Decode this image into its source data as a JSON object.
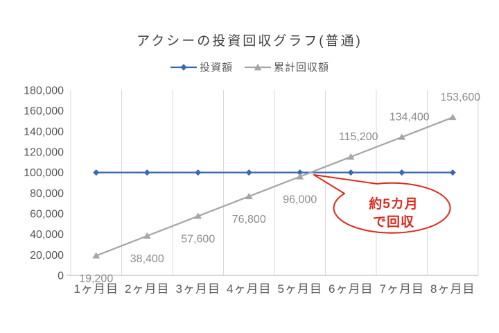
{
  "chart_data": {
    "type": "line",
    "title": "アクシーの投資回収グラフ(普通)",
    "categories": [
      "1ヶ月目",
      "2ヶ月目",
      "3ヶ月目",
      "4ヶ月目",
      "5ヶ月目",
      "6ヶ月目",
      "7ヶ月目",
      "8ヶ月目"
    ],
    "series": [
      {
        "name": "投資額",
        "color": "#3e68ae",
        "marker": "diamond",
        "values": [
          100000,
          100000,
          100000,
          100000,
          100000,
          100000,
          100000,
          100000
        ]
      },
      {
        "name": "累計回収額",
        "color": "#a6a6a6",
        "marker": "triangle",
        "values": [
          19200,
          38400,
          57600,
          76800,
          96000,
          115200,
          134400,
          153600
        ],
        "data_labels": [
          "19,200",
          "38,400",
          "57,600",
          "76,800",
          "96,000",
          "115,200",
          "134,400",
          "153,600"
        ],
        "label_positions": [
          "below",
          "below",
          "below",
          "below",
          "below",
          "above",
          "above",
          "above"
        ]
      }
    ],
    "y_axis": {
      "min": 0,
      "max": 180000,
      "step": 20000,
      "tick_labels": [
        "0",
        "20,000",
        "40,000",
        "60,000",
        "80,000",
        "100,000",
        "120,000",
        "140,000",
        "160,000",
        "180,000"
      ]
    },
    "x_axis": {
      "label": ""
    },
    "grid": "vertical-only",
    "legend_position": "top",
    "annotation": {
      "shape": "oval-callout",
      "text_lines": [
        "約5カ月",
        "で回収"
      ],
      "color": "#dd2a1e",
      "points_to": "series-intersection-near-month-5"
    },
    "style_colors": {
      "gridline": "#d9d9d9",
      "axis_line": "#bfbfbf",
      "tick_label": "#595959",
      "data_label": "#8c8c8c",
      "title": "#3f3f3f"
    }
  }
}
